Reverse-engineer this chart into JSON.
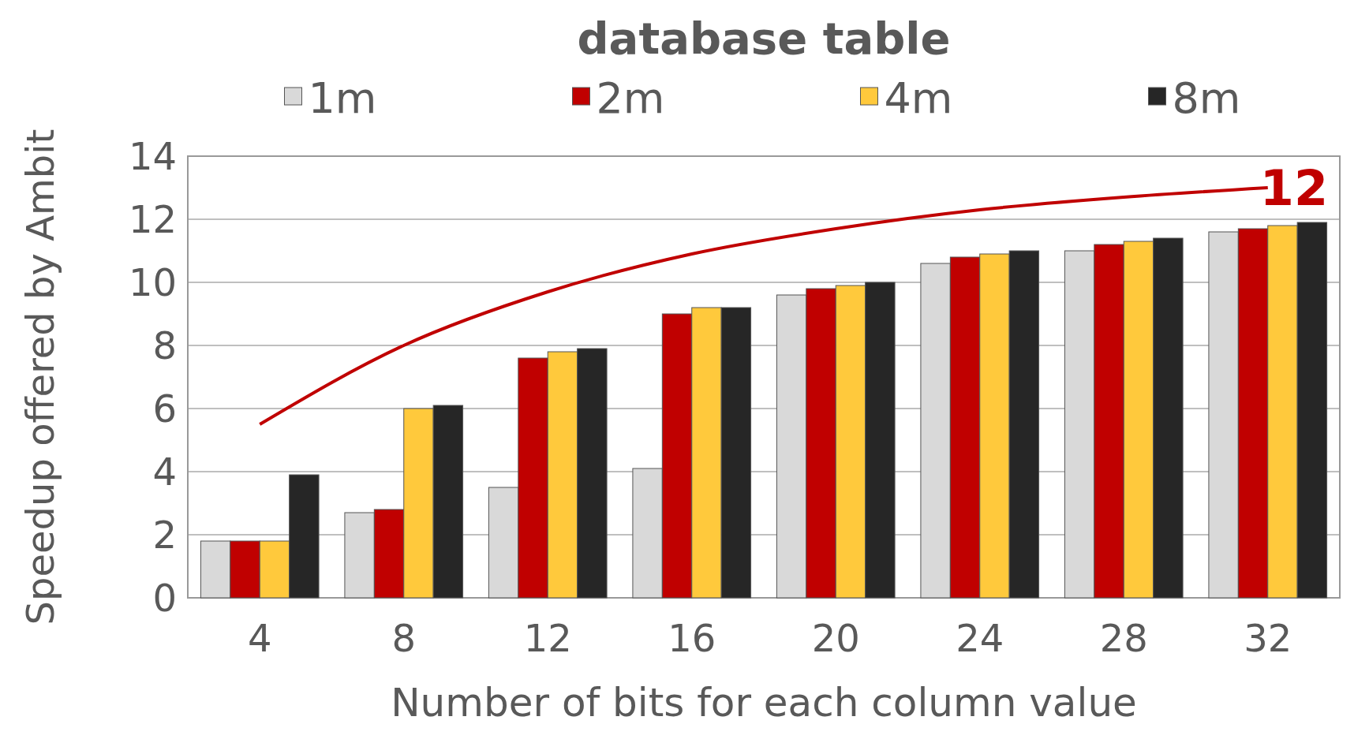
{
  "chart_data": {
    "type": "bar",
    "title": "database table",
    "xlabel": "Number of bits for each column value",
    "ylabel": "Speedup offered by Ambit",
    "categories": [
      "4",
      "8",
      "12",
      "16",
      "20",
      "24",
      "28",
      "32"
    ],
    "series": [
      {
        "name": "1m",
        "color": "#d9d9d9",
        "values": [
          1.8,
          2.7,
          3.5,
          4.1,
          9.6,
          10.6,
          11.0,
          11.6
        ]
      },
      {
        "name": "2m",
        "color": "#c00000",
        "values": [
          1.8,
          2.8,
          7.6,
          9.0,
          9.8,
          10.8,
          11.2,
          11.7
        ]
      },
      {
        "name": "4m",
        "color": "#ffc93c",
        "values": [
          1.8,
          6.0,
          7.8,
          9.2,
          9.9,
          10.9,
          11.3,
          11.8
        ]
      },
      {
        "name": "8m",
        "color": "#262626",
        "values": [
          3.9,
          6.1,
          7.9,
          9.2,
          10.0,
          11.0,
          11.4,
          11.9
        ]
      },
      {
        "type": "line",
        "color": "#c00000",
        "x": [
          "4",
          "8",
          "12",
          "16",
          "20",
          "24",
          "28",
          "32"
        ],
        "values": [
          5.5,
          8.0,
          9.7,
          10.9,
          11.7,
          12.3,
          12.7,
          13.0
        ]
      }
    ],
    "annotations": [
      {
        "text": "12",
        "x": "32",
        "y": 13.0
      }
    ],
    "ylim": [
      0,
      14
    ],
    "yticks": [
      0,
      2,
      4,
      6,
      8,
      10,
      12,
      14
    ],
    "grid": "y",
    "legend": "top"
  }
}
